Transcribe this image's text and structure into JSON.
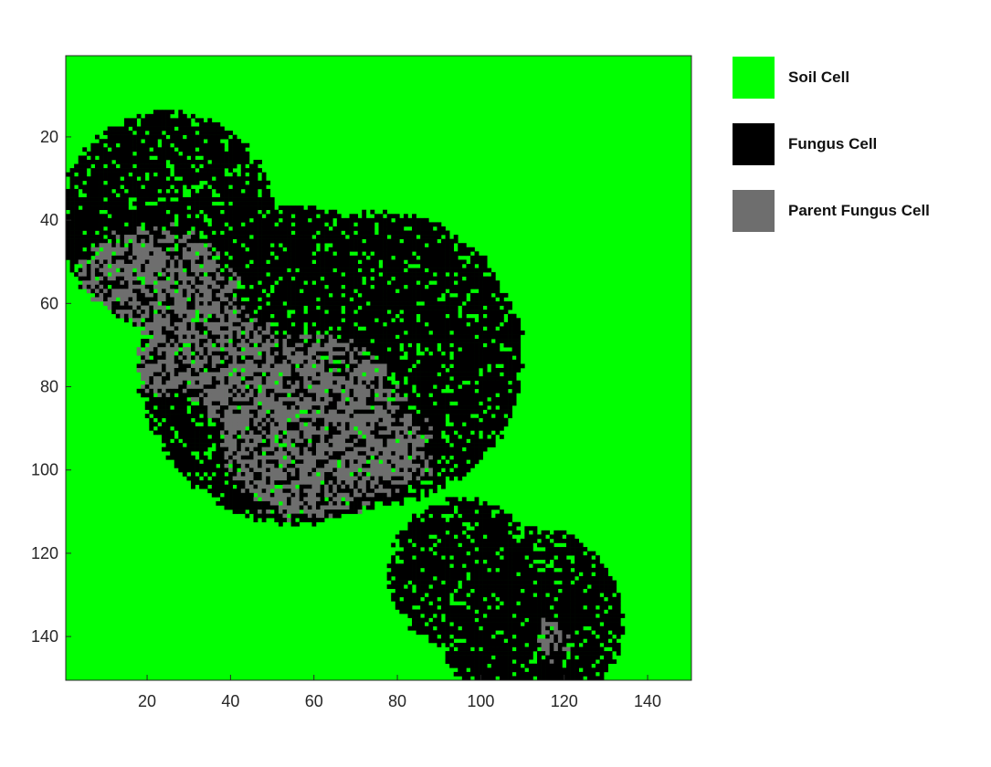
{
  "chart_data": {
    "type": "heatmap",
    "title": "",
    "xlabel": "",
    "ylabel": "",
    "grid_size": [
      150,
      150
    ],
    "xlim": [
      0.5,
      150.5
    ],
    "ylim": [
      150.5,
      0.5
    ],
    "y_axis_direction": "reverse",
    "x_ticks": [
      20,
      40,
      60,
      80,
      100,
      120,
      140
    ],
    "y_ticks": [
      20,
      40,
      60,
      80,
      100,
      120,
      140
    ],
    "grid": false,
    "legend_placement": "right",
    "categories": [
      {
        "label": "Soil Cell",
        "color": "#00ff00"
      },
      {
        "label": "Fungus Cell",
        "color": "#000000"
      },
      {
        "label": "Parent Fungus Cell",
        "color": "#6e6e6e"
      }
    ],
    "fungus_colonies": [
      {
        "center": [
          56,
          75
        ],
        "radius": 38
      },
      {
        "center": [
          25,
          40
        ],
        "radius": 26
      },
      {
        "center": [
          75,
          73
        ],
        "radius": 35
      },
      {
        "center": [
          112,
          136
        ],
        "radius": 22
      },
      {
        "center": [
          96,
          125
        ],
        "radius": 18
      }
    ],
    "parent_regions": [
      {
        "center": [
          22,
          62
        ],
        "radius": 20
      },
      {
        "center": [
          60,
          90
        ],
        "radius": 22
      },
      {
        "center": [
          40,
          75
        ],
        "radius": 12
      },
      {
        "center": [
          78,
          95
        ],
        "radius": 10
      },
      {
        "center": [
          117,
          141
        ],
        "radius": 4
      }
    ]
  }
}
